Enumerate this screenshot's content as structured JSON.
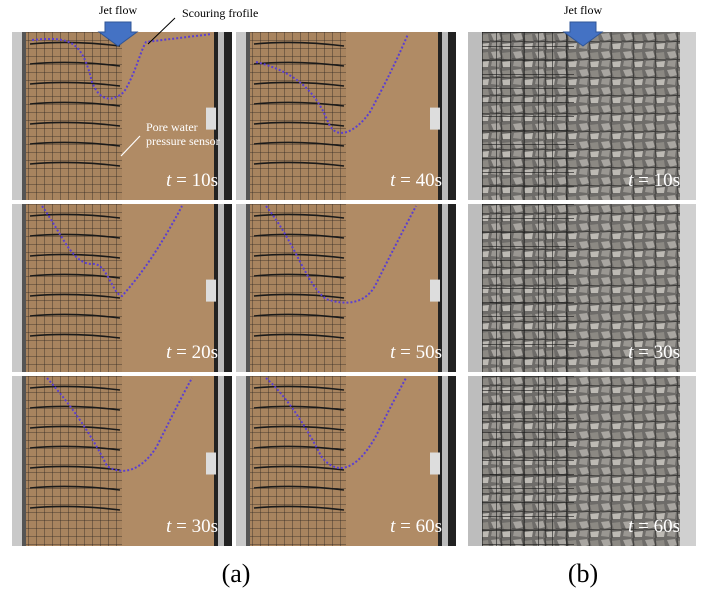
{
  "annotations": {
    "jet_flow_a": "Jet flow",
    "jet_flow_b": "Jet flow",
    "scouring_profile": "Scouring frofile",
    "sensor_line1": "Pore water",
    "sensor_line2": "pressure sensor"
  },
  "time_symbol": "t",
  "panels_a": [
    {
      "time": " = 10s"
    },
    {
      "time": " = 40s"
    },
    {
      "time": " = 20s"
    },
    {
      "time": " = 50s"
    },
    {
      "time": " = 30s"
    },
    {
      "time": " = 60s"
    }
  ],
  "panels_b": [
    {
      "time": " = 10s"
    },
    {
      "time": " = 30s"
    },
    {
      "time": " = 60s"
    }
  ],
  "captions": {
    "a": "(a)",
    "b": "(b)"
  }
}
